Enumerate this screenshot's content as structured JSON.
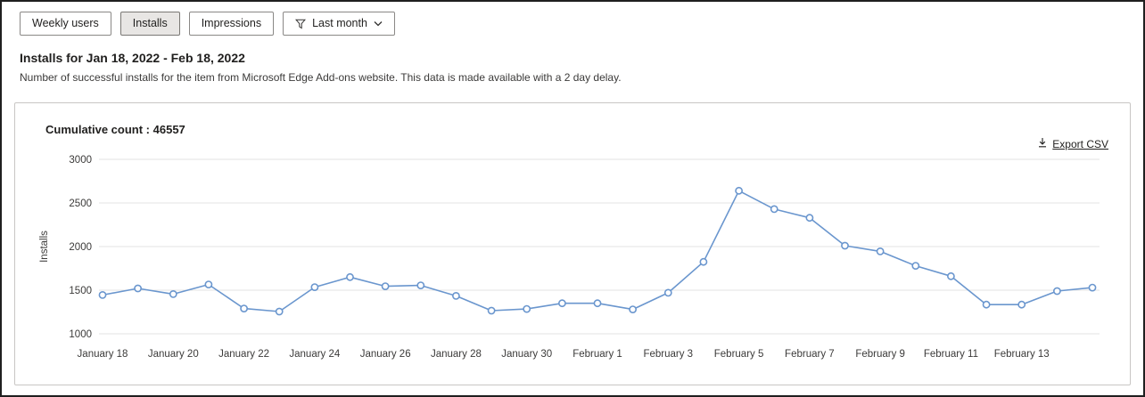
{
  "toolbar": {
    "buttons": [
      {
        "label": "Weekly users",
        "active": false
      },
      {
        "label": "Installs",
        "active": true
      },
      {
        "label": "Impressions",
        "active": false
      }
    ],
    "filter": {
      "label": "Last month"
    }
  },
  "header": {
    "title": "Installs for Jan 18, 2022 - Feb 18, 2022",
    "description": "Number of successful installs for the item from Microsoft Edge Add-ons website. This data is made available with a 2 day delay."
  },
  "card": {
    "cumulative_label": "Cumulative count :",
    "cumulative_value": "46557",
    "export_label": "Export CSV"
  },
  "chart_data": {
    "type": "line",
    "title": "Installs for Jan 18, 2022 - Feb 18, 2022",
    "ylabel": "Installs",
    "ylim": [
      1000,
      3000
    ],
    "yticks": [
      1000,
      1500,
      2000,
      2500,
      3000
    ],
    "grid": true,
    "legend": false,
    "line_color": "#6a96ce",
    "marker_fill": "#ffffff",
    "categories": [
      "January 18",
      "January 19",
      "January 20",
      "January 21",
      "January 22",
      "January 23",
      "January 24",
      "January 25",
      "January 26",
      "January 27",
      "January 28",
      "January 29",
      "January 30",
      "January 31",
      "February 1",
      "February 2",
      "February 3",
      "February 4",
      "February 5",
      "February 6",
      "February 7",
      "February 8",
      "February 9",
      "February 10",
      "February 11",
      "February 12",
      "February 13",
      "February 14",
      "February 15"
    ],
    "values": [
      1445,
      1520,
      1455,
      1565,
      1290,
      1255,
      1535,
      1650,
      1545,
      1555,
      1435,
      1265,
      1285,
      1350,
      1350,
      1280,
      1470,
      1825,
      2640,
      2430,
      2330,
      2010,
      1945,
      1780,
      1660,
      1335,
      1335,
      1490,
      1530
    ],
    "xtick_indices": [
      0,
      2,
      4,
      6,
      8,
      10,
      12,
      14,
      16,
      18,
      20,
      22,
      24,
      26
    ]
  }
}
